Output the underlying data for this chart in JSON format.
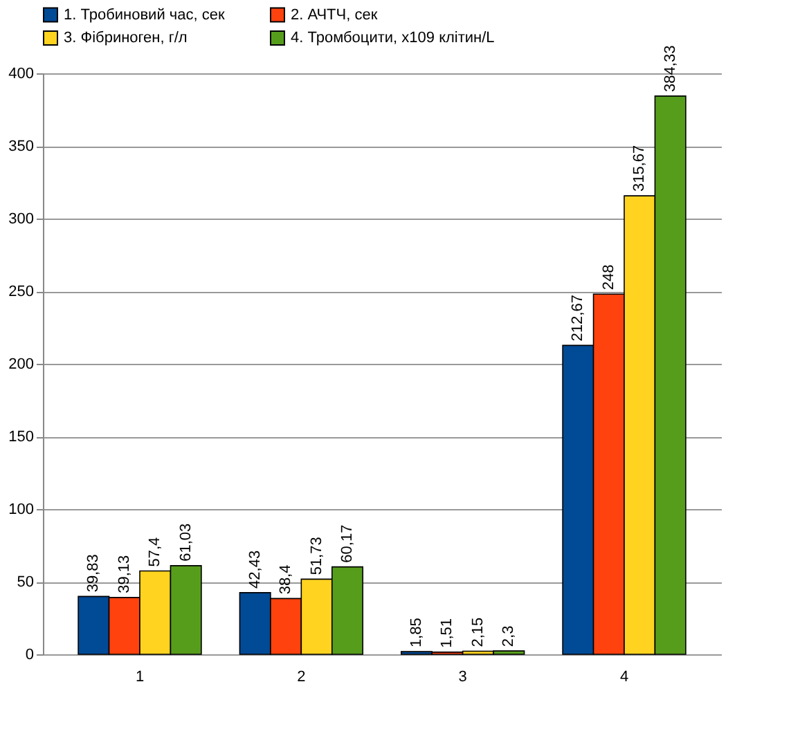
{
  "chart_data": {
    "type": "bar",
    "categories": [
      "1",
      "2",
      "3",
      "4"
    ],
    "series": [
      {
        "name": "1. Тробиновий час, сек",
        "color": "#004a96",
        "values": [
          39.83,
          42.43,
          1.85,
          212.67
        ],
        "value_labels": [
          "39,83",
          "42,43",
          "1,85",
          "212,67"
        ]
      },
      {
        "name": "2. АЧТЧ, сек",
        "color": "#ff420e",
        "values": [
          39.13,
          38.4,
          1.51,
          248
        ],
        "value_labels": [
          "39,13",
          "38,4",
          "1,51",
          "248"
        ]
      },
      {
        "name": "3. Фібриноген, г/л",
        "color": "#ffd320",
        "values": [
          57.4,
          51.73,
          2.15,
          315.67
        ],
        "value_labels": [
          "57,4",
          "51,73",
          "2,15",
          "315,67"
        ]
      },
      {
        "name": "4. Тромбоцити, x109 клітин/L",
        "color": "#579d1c",
        "values": [
          61.03,
          60.17,
          2.3,
          384.33
        ],
        "value_labels": [
          "61,03",
          "60,17",
          "2,3",
          "384,33"
        ]
      }
    ],
    "ylim": [
      0,
      400
    ],
    "yticks": [
      0,
      50,
      100,
      150,
      200,
      250,
      300,
      350,
      400
    ],
    "grid": "y",
    "legend": "top"
  }
}
